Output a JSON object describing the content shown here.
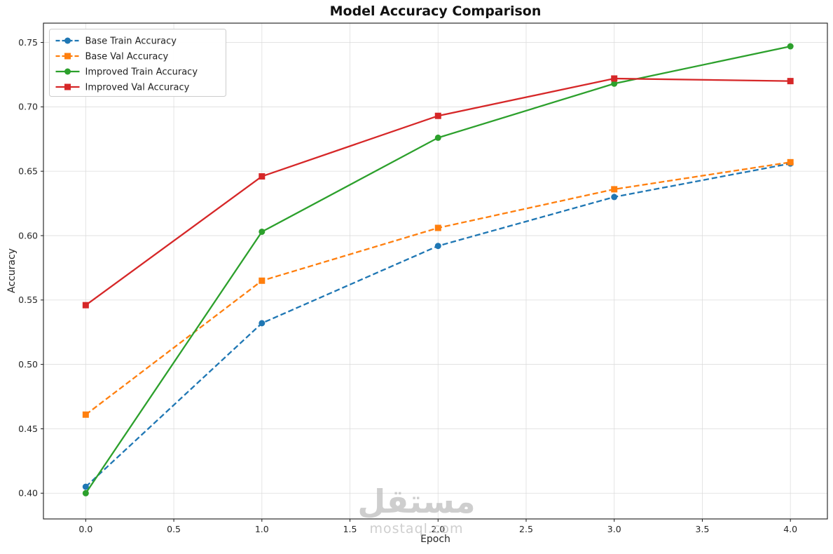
{
  "chart_data": {
    "type": "line",
    "title": "Model Accuracy Comparison",
    "xlabel": "Epoch",
    "ylabel": "Accuracy",
    "x": [
      0,
      1,
      2,
      3,
      4
    ],
    "series": [
      {
        "name": "Base Train Accuracy",
        "values": [
          0.405,
          0.532,
          0.592,
          0.63,
          0.656
        ],
        "color": "#1f77b4",
        "linestyle": "dashed",
        "marker": "circle"
      },
      {
        "name": "Base Val Accuracy",
        "values": [
          0.461,
          0.565,
          0.606,
          0.636,
          0.657
        ],
        "color": "#ff7f0e",
        "linestyle": "dashed",
        "marker": "square"
      },
      {
        "name": "Improved Train Accuracy",
        "values": [
          0.4,
          0.603,
          0.676,
          0.718,
          0.747
        ],
        "color": "#2ca02c",
        "linestyle": "solid",
        "marker": "circle"
      },
      {
        "name": "Improved Val Accuracy",
        "values": [
          0.546,
          0.646,
          0.693,
          0.722,
          0.72
        ],
        "color": "#d62728",
        "linestyle": "solid",
        "marker": "square"
      }
    ],
    "x_ticks": [
      0.0,
      0.5,
      1.0,
      1.5,
      2.0,
      2.5,
      3.0,
      3.5,
      4.0
    ],
    "x_tick_labels": [
      "0.0",
      "0.5",
      "1.0",
      "1.5",
      "2.0",
      "2.5",
      "3.0",
      "3.5",
      "4.0"
    ],
    "y_ticks": [
      0.4,
      0.45,
      0.5,
      0.55,
      0.6,
      0.65,
      0.7,
      0.75
    ],
    "y_tick_labels": [
      "0.40",
      "0.45",
      "0.50",
      "0.55",
      "0.60",
      "0.65",
      "0.70",
      "0.75"
    ],
    "xlim": [
      -0.24,
      4.21
    ],
    "ylim": [
      0.38,
      0.765
    ],
    "grid": true,
    "legend_position": "upper-left"
  },
  "watermark": {
    "line1": "مستقل",
    "line2": "mostaql.com"
  }
}
